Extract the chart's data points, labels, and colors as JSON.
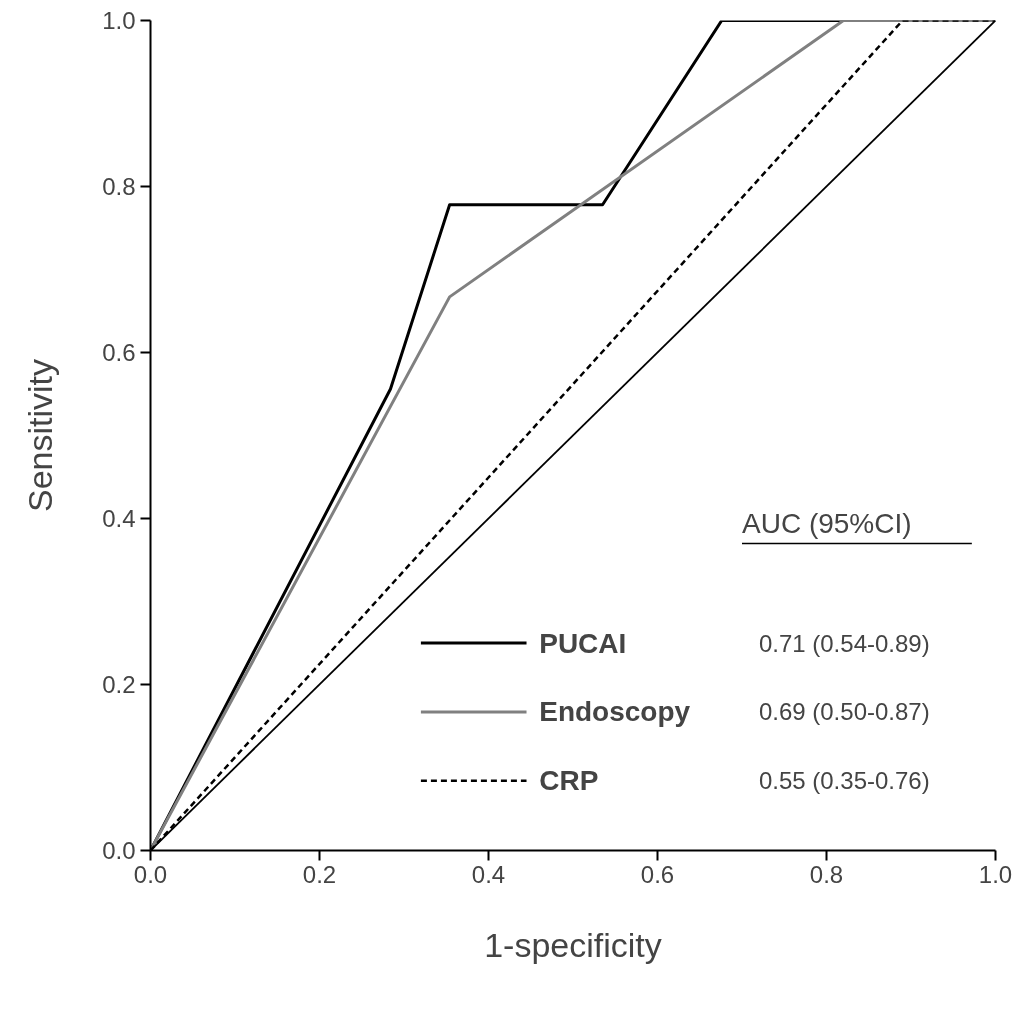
{
  "chart_data": {
    "type": "line",
    "xlabel": "1-specificity",
    "ylabel": "Sensitivity",
    "legend_title": "AUC (95%CI)",
    "legend": "bottom right",
    "grid": false,
    "xlim": [
      0,
      1
    ],
    "ylim": [
      0,
      1
    ],
    "xticks": [
      {
        "value": 0,
        "label": "0.0"
      },
      {
        "value": 0.2,
        "label": "0.2"
      },
      {
        "value": 0.4,
        "label": "0.4"
      },
      {
        "value": 0.6,
        "label": "0.6"
      },
      {
        "value": 0.8,
        "label": "0.8"
      },
      {
        "value": 1,
        "label": "1.0"
      }
    ],
    "yticks": [
      {
        "value": 0,
        "label": "0.0"
      },
      {
        "value": 0.2,
        "label": "0.2"
      },
      {
        "value": 0.4,
        "label": "0.4"
      },
      {
        "value": 0.6,
        "label": "0.6"
      },
      {
        "value": 0.8,
        "label": "0.8"
      },
      {
        "value": 1,
        "label": "1.0"
      }
    ],
    "series": [
      {
        "name": "PUCAI",
        "color": "#000000",
        "line_style": "solid",
        "x": [
          0,
          0.284,
          0.354,
          0.535,
          0.676,
          1
        ],
        "values": [
          0,
          0.556,
          0.778,
          0.778,
          1,
          1
        ]
      },
      {
        "name": "Endoscopy",
        "color": "#808080",
        "line_style": "solid",
        "x": [
          0,
          0.354,
          0.82,
          1
        ],
        "values": [
          0,
          0.667,
          1,
          1
        ]
      },
      {
        "name": "CRP",
        "color": "#000000",
        "line_style": "dashed",
        "x": [
          0,
          0.89,
          1
        ],
        "values": [
          0,
          1,
          1
        ]
      },
      {
        "color": "#000000",
        "line_style": "solid",
        "x": [
          0,
          1
        ],
        "values": [
          0,
          1
        ]
      }
    ],
    "annotations": [
      "0.71 (0.54-0.89)",
      "0.69 (0.50-0.87)",
      "0.55 (0.35-0.76)"
    ]
  }
}
